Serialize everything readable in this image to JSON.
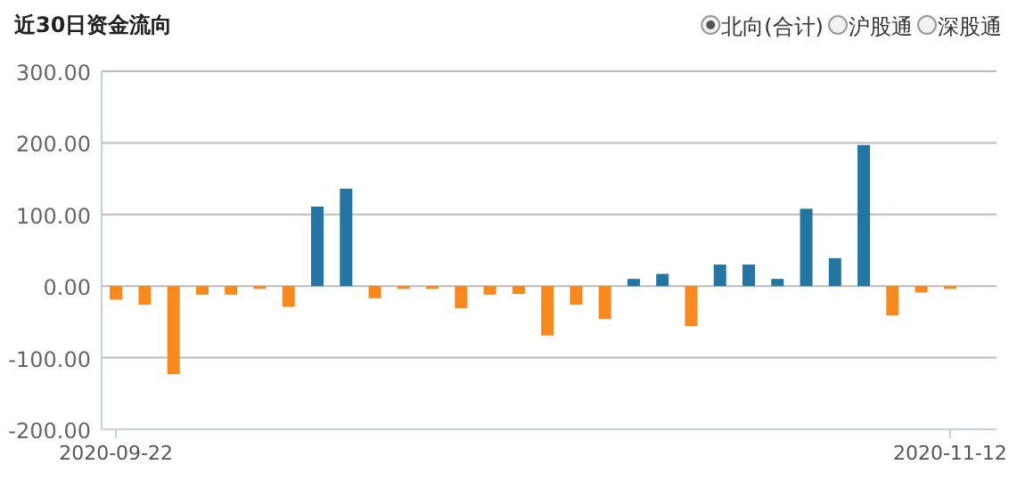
{
  "chart_data": {
    "type": "bar",
    "title": "近30日资金流向",
    "annotations": [
      "北向(合计)",
      "沪股通",
      "深股通"
    ],
    "categories": [
      "2020-09-22",
      null,
      null,
      null,
      null,
      null,
      null,
      null,
      null,
      null,
      null,
      null,
      null,
      null,
      null,
      null,
      null,
      null,
      null,
      null,
      null,
      null,
      null,
      null,
      null,
      null,
      null,
      null,
      null,
      "2020-11-12"
    ],
    "values": [
      -19,
      -26,
      -123,
      -12,
      -12,
      -4,
      -29,
      111,
      136,
      -17,
      -4,
      -4,
      -31,
      -12,
      -11,
      -69,
      -26,
      -46,
      10,
      17,
      -56,
      30,
      30,
      10,
      108,
      39,
      197,
      -41,
      -9,
      -4
    ],
    "colors": [
      "#f7891d",
      "#f7891d",
      "#f7891d",
      "#f7891d",
      "#f7891d",
      "#f7891d",
      "#f7891d",
      "#2376a3",
      "#2376a3",
      "#f7891d",
      "#f7891d",
      "#f7891d",
      "#f7891d",
      "#f7891d",
      "#f7891d",
      "#f7891d",
      "#f7891d",
      "#f7891d",
      "#2376a3",
      "#2376a3",
      "#f7891d",
      "#2376a3",
      "#2376a3",
      "#2376a3",
      "#2376a3",
      "#2376a3",
      "#2376a3",
      "#f7891d",
      "#f7891d",
      "#f7891d"
    ],
    "ylim": [
      -200,
      300
    ],
    "yticks": [
      {
        "value": -200,
        "label": "-200.00"
      },
      {
        "value": -100,
        "label": "-100.00"
      },
      {
        "value": 0,
        "label": "0.00"
      },
      {
        "value": 100,
        "label": "100.00"
      },
      {
        "value": 200,
        "label": "200.00"
      },
      {
        "value": 300,
        "label": "300.00"
      }
    ],
    "grid": "y"
  }
}
